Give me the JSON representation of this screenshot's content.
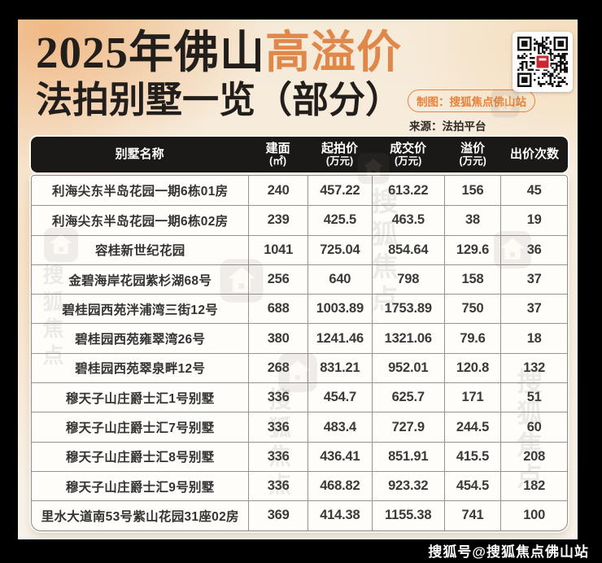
{
  "header": {
    "title_line1_black": "2025年佛山",
    "title_line1_accent": "高溢价",
    "title_line2": "法拍别墅一览（部分）",
    "credit_badge": "制图：搜狐焦点佛山站",
    "source": "来源：法拍平台"
  },
  "colors": {
    "accent_orange": "#E0874B",
    "badge_orange": "#E8823A",
    "table_header_bg": "#1B1917",
    "frame_black": "#000000",
    "bg_cream": "#F8EFE2",
    "qr_logo_red": "#C8282E"
  },
  "table": {
    "columns": [
      {
        "label": "别墅名称",
        "unit": ""
      },
      {
        "label": "建面",
        "unit": "(㎡)"
      },
      {
        "label": "起拍价",
        "unit": "(万元)"
      },
      {
        "label": "成交价",
        "unit": "(万元)"
      },
      {
        "label": "溢价",
        "unit": "(万元)"
      },
      {
        "label": "出价次数",
        "unit": ""
      }
    ]
  },
  "chart_data": {
    "type": "table",
    "title": "2025年佛山高溢价法拍别墅一览（部分）",
    "columns": [
      "别墅名称",
      "建面(㎡)",
      "起拍价(万元)",
      "成交价(万元)",
      "溢价(万元)",
      "出价次数"
    ],
    "rows": [
      [
        "利海尖东半岛花园一期6栋01房",
        "240",
        "457.22",
        "613.22",
        "156",
        "45"
      ],
      [
        "利海尖东半岛花园一期6栋02房",
        "239",
        "425.5",
        "463.5",
        "38",
        "19"
      ],
      [
        "容桂新世纪花园",
        "1041",
        "725.04",
        "854.64",
        "129.6",
        "36"
      ],
      [
        "金碧海岸花园紫杉湖68号",
        "256",
        "640",
        "798",
        "158",
        "37"
      ],
      [
        "碧桂园西苑泮浦湾三街12号",
        "688",
        "1003.89",
        "1753.89",
        "750",
        "37"
      ],
      [
        "碧桂园西苑雍翠湾26号",
        "380",
        "1241.46",
        "1321.06",
        "79.6",
        "18"
      ],
      [
        "碧桂园西苑翠泉畔12号",
        "268",
        "831.21",
        "952.01",
        "120.8",
        "132"
      ],
      [
        "穆天子山庄爵士汇1号别墅",
        "336",
        "454.7",
        "625.7",
        "171",
        "51"
      ],
      [
        "穆天子山庄爵士汇7号别墅",
        "336",
        "483.4",
        "727.9",
        "244.5",
        "60"
      ],
      [
        "穆天子山庄爵士汇8号别墅",
        "336",
        "436.41",
        "851.91",
        "415.5",
        "208"
      ],
      [
        "穆天子山庄爵士汇9号别墅",
        "336",
        "468.82",
        "923.32",
        "454.5",
        "182"
      ],
      [
        "里水大道南53号紫山花园31座02房",
        "369",
        "414.38",
        "1155.38",
        "741",
        "100"
      ]
    ]
  },
  "watermark": {
    "text": "搜狐焦点"
  },
  "footer": {
    "handle": "搜狐号@搜狐焦点佛山站"
  }
}
